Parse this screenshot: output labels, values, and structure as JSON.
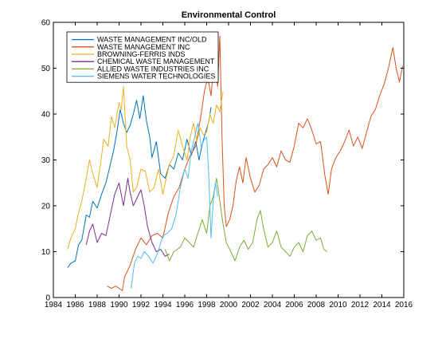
{
  "chart_data": {
    "type": "line",
    "title": "Environmental Control",
    "xlabel": "",
    "ylabel": "",
    "xlim": [
      1984,
      2016
    ],
    "ylim": [
      0,
      60
    ],
    "xticks": [
      "1984",
      "1986",
      "1988",
      "1990",
      "1992",
      "1994",
      "1996",
      "1998",
      "2000",
      "2002",
      "2004",
      "2006",
      "2008",
      "2010",
      "2012",
      "2014",
      "2016"
    ],
    "yticks": [
      "0",
      "10",
      "20",
      "30",
      "40",
      "50",
      "60"
    ],
    "grid": false,
    "legend_position": "top-left",
    "series": [
      {
        "name": "WASTE MANAGEMENT INC/OLD",
        "color": "#0072BD",
        "points": [
          [
            1985.3,
            6.5
          ],
          [
            1985.6,
            7.5
          ],
          [
            1986.0,
            8.0
          ],
          [
            1986.3,
            11.5
          ],
          [
            1986.6,
            12.5
          ],
          [
            1987.0,
            18.0
          ],
          [
            1987.3,
            17.5
          ],
          [
            1987.6,
            21.0
          ],
          [
            1988.0,
            19.5
          ],
          [
            1988.4,
            22.5
          ],
          [
            1988.8,
            25.0
          ],
          [
            1989.2,
            29.0
          ],
          [
            1989.5,
            32.0
          ],
          [
            1989.8,
            36.0
          ],
          [
            1990.1,
            41.0
          ],
          [
            1990.4,
            38.0
          ],
          [
            1990.7,
            36.0
          ],
          [
            1991.0,
            37.5
          ],
          [
            1991.3,
            40.0
          ],
          [
            1991.6,
            43.0
          ],
          [
            1991.9,
            39.0
          ],
          [
            1992.2,
            44.0
          ],
          [
            1992.5,
            38.5
          ],
          [
            1992.8,
            35.0
          ],
          [
            1993.0,
            30.5
          ],
          [
            1993.4,
            34.0
          ],
          [
            1993.8,
            27.0
          ],
          [
            1994.2,
            26.0
          ],
          [
            1994.6,
            29.0
          ],
          [
            1995.0,
            28.0
          ],
          [
            1995.4,
            31.5
          ],
          [
            1995.8,
            30.0
          ],
          [
            1996.2,
            34.5
          ],
          [
            1996.6,
            31.0
          ],
          [
            1997.0,
            34.0
          ],
          [
            1997.3,
            30.0
          ],
          [
            1997.6,
            33.5
          ],
          [
            1997.9,
            36.0
          ],
          [
            1998.2,
            38.5
          ],
          [
            1998.4,
            41.5
          ]
        ]
      },
      {
        "name": "WASTE MANAGEMENT INC",
        "color": "#D95319",
        "points": [
          [
            1988.9,
            2.5
          ],
          [
            1989.3,
            2.0
          ],
          [
            1989.7,
            2.5
          ],
          [
            1990.0,
            2.0
          ],
          [
            1990.3,
            1.5
          ],
          [
            1990.5,
            4.5
          ],
          [
            1991.0,
            7.0
          ],
          [
            1991.5,
            10.5
          ],
          [
            1992.0,
            13.0
          ],
          [
            1992.5,
            11.5
          ],
          [
            1993.0,
            13.5
          ],
          [
            1993.5,
            14.0
          ],
          [
            1994.0,
            13.0
          ],
          [
            1994.5,
            18.5
          ],
          [
            1995.0,
            22.0
          ],
          [
            1995.5,
            24.0
          ],
          [
            1996.0,
            28.0
          ],
          [
            1996.5,
            31.0
          ],
          [
            1997.0,
            33.0
          ],
          [
            1997.5,
            40.0
          ],
          [
            1997.8,
            45.0
          ],
          [
            1998.1,
            48.0
          ],
          [
            1998.4,
            44.0
          ],
          [
            1998.7,
            52.0
          ],
          [
            1999.0,
            46.0
          ],
          [
            1999.2,
            57.0
          ],
          [
            1999.4,
            35.0
          ],
          [
            1999.6,
            20.0
          ],
          [
            1999.8,
            15.5
          ],
          [
            2000.1,
            17.0
          ],
          [
            2000.4,
            20.0
          ],
          [
            2000.7,
            25.5
          ],
          [
            2001.0,
            28.5
          ],
          [
            2001.3,
            25.0
          ],
          [
            2001.6,
            30.5
          ],
          [
            2002.0,
            26.0
          ],
          [
            2002.4,
            23.0
          ],
          [
            2002.8,
            24.5
          ],
          [
            2003.2,
            28.0
          ],
          [
            2003.6,
            29.0
          ],
          [
            2004.0,
            30.5
          ],
          [
            2004.4,
            28.5
          ],
          [
            2004.8,
            32.0
          ],
          [
            2005.2,
            30.0
          ],
          [
            2005.6,
            29.5
          ],
          [
            2006.0,
            33.0
          ],
          [
            2006.4,
            38.0
          ],
          [
            2006.8,
            37.0
          ],
          [
            2007.2,
            39.0
          ],
          [
            2007.6,
            36.5
          ],
          [
            2008.0,
            33.5
          ],
          [
            2008.4,
            34.0
          ],
          [
            2008.8,
            26.5
          ],
          [
            2009.1,
            22.5
          ],
          [
            2009.4,
            28.0
          ],
          [
            2009.8,
            30.5
          ],
          [
            2010.2,
            32.0
          ],
          [
            2010.6,
            34.0
          ],
          [
            2011.0,
            36.5
          ],
          [
            2011.4,
            33.0
          ],
          [
            2011.8,
            35.0
          ],
          [
            2012.2,
            32.5
          ],
          [
            2012.6,
            36.0
          ],
          [
            2013.0,
            39.5
          ],
          [
            2013.4,
            41.0
          ],
          [
            2013.8,
            44.0
          ],
          [
            2014.2,
            46.5
          ],
          [
            2014.6,
            50.0
          ],
          [
            2015.0,
            54.5
          ],
          [
            2015.3,
            50.0
          ],
          [
            2015.6,
            47.0
          ],
          [
            2015.9,
            50.5
          ]
        ]
      },
      {
        "name": "BROWNING-FERRIS INDS",
        "color": "#EDB120",
        "points": [
          [
            1985.3,
            10.5
          ],
          [
            1985.6,
            13.0
          ],
          [
            1986.0,
            15.0
          ],
          [
            1986.3,
            18.5
          ],
          [
            1986.6,
            21.0
          ],
          [
            1987.0,
            26.0
          ],
          [
            1987.3,
            30.0
          ],
          [
            1987.6,
            27.0
          ],
          [
            1988.0,
            24.0
          ],
          [
            1988.3,
            29.0
          ],
          [
            1988.6,
            34.5
          ],
          [
            1989.0,
            33.0
          ],
          [
            1989.3,
            39.5
          ],
          [
            1989.6,
            37.0
          ],
          [
            1990.0,
            42.5
          ],
          [
            1990.2,
            41.0
          ],
          [
            1990.4,
            46.0
          ],
          [
            1990.7,
            33.0
          ],
          [
            1991.0,
            30.0
          ],
          [
            1991.3,
            23.0
          ],
          [
            1991.6,
            24.0
          ],
          [
            1992.0,
            28.0
          ],
          [
            1992.4,
            27.5
          ],
          [
            1992.8,
            23.0
          ],
          [
            1993.2,
            24.0
          ],
          [
            1993.6,
            28.0
          ],
          [
            1994.0,
            22.5
          ],
          [
            1994.3,
            26.0
          ],
          [
            1994.6,
            29.0
          ],
          [
            1995.0,
            31.0
          ],
          [
            1995.4,
            36.5
          ],
          [
            1995.8,
            33.0
          ],
          [
            1996.2,
            30.0
          ],
          [
            1996.5,
            35.0
          ],
          [
            1996.8,
            38.0
          ],
          [
            1997.1,
            34.0
          ],
          [
            1997.4,
            37.0
          ],
          [
            1997.7,
            35.5
          ],
          [
            1998.0,
            36.0
          ],
          [
            1998.3,
            40.0
          ],
          [
            1998.6,
            38.0
          ],
          [
            1998.9,
            42.0
          ],
          [
            1999.2,
            40.5
          ],
          [
            1999.5,
            45.0
          ]
        ]
      },
      {
        "name": "CHEMICAL WASTE MANAGEMENT",
        "color": "#7E2F8E",
        "points": [
          [
            1987.0,
            11.5
          ],
          [
            1987.3,
            14.5
          ],
          [
            1987.6,
            16.0
          ],
          [
            1988.0,
            12.0
          ],
          [
            1988.4,
            14.0
          ],
          [
            1988.8,
            13.5
          ],
          [
            1989.2,
            18.0
          ],
          [
            1989.6,
            22.5
          ],
          [
            1990.0,
            25.0
          ],
          [
            1990.4,
            20.0
          ],
          [
            1990.8,
            26.0
          ],
          [
            1991.0,
            23.0
          ],
          [
            1991.3,
            20.0
          ],
          [
            1991.6,
            21.5
          ],
          [
            1992.0,
            23.5
          ],
          [
            1992.3,
            20.0
          ],
          [
            1992.6,
            15.5
          ],
          [
            1993.0,
            12.0
          ],
          [
            1993.4,
            10.0
          ],
          [
            1993.8,
            10.5
          ],
          [
            1994.2,
            9.0
          ],
          [
            1994.6,
            9.5
          ]
        ]
      },
      {
        "name": "ALLIED WASTE INDUSTRIES INC",
        "color": "#77AC30",
        "points": [
          [
            1994.2,
            10.5
          ],
          [
            1994.6,
            8.0
          ],
          [
            1995.0,
            10.0
          ],
          [
            1995.3,
            10.5
          ],
          [
            1995.6,
            11.0
          ],
          [
            1996.0,
            13.0
          ],
          [
            1996.4,
            12.0
          ],
          [
            1996.8,
            11.0
          ],
          [
            1997.2,
            14.0
          ],
          [
            1997.6,
            17.0
          ],
          [
            1998.0,
            14.0
          ],
          [
            1998.3,
            20.0
          ],
          [
            1998.6,
            22.0
          ],
          [
            1998.9,
            26.0
          ],
          [
            1999.2,
            21.0
          ],
          [
            1999.5,
            16.0
          ],
          [
            1999.8,
            12.0
          ],
          [
            2000.2,
            10.0
          ],
          [
            2000.6,
            8.0
          ],
          [
            2001.0,
            11.0
          ],
          [
            2001.4,
            12.5
          ],
          [
            2001.8,
            10.5
          ],
          [
            2002.2,
            12.0
          ],
          [
            2002.6,
            17.0
          ],
          [
            2002.9,
            19.0
          ],
          [
            2003.2,
            15.0
          ],
          [
            2003.6,
            11.0
          ],
          [
            2004.0,
            12.0
          ],
          [
            2004.4,
            14.5
          ],
          [
            2004.8,
            11.0
          ],
          [
            2005.2,
            10.0
          ],
          [
            2005.6,
            9.0
          ],
          [
            2006.0,
            11.0
          ],
          [
            2006.4,
            12.0
          ],
          [
            2006.8,
            10.0
          ],
          [
            2007.2,
            13.5
          ],
          [
            2007.6,
            14.5
          ],
          [
            2008.0,
            12.5
          ],
          [
            2008.4,
            13.0
          ],
          [
            2008.7,
            10.5
          ],
          [
            2009.0,
            10.0
          ]
        ]
      },
      {
        "name": "SIEMENS WATER TECHNOLOGIES",
        "color": "#4DBEEE",
        "points": [
          [
            1991.1,
            2.0
          ],
          [
            1991.4,
            7.5
          ],
          [
            1991.7,
            9.0
          ],
          [
            1992.0,
            8.5
          ],
          [
            1992.3,
            10.0
          ],
          [
            1992.7,
            9.0
          ],
          [
            1993.1,
            7.5
          ],
          [
            1993.5,
            9.5
          ],
          [
            1994.0,
            13.5
          ],
          [
            1994.4,
            14.0
          ],
          [
            1994.8,
            15.0
          ],
          [
            1995.2,
            18.0
          ],
          [
            1995.6,
            24.0
          ],
          [
            1996.0,
            28.0
          ],
          [
            1996.3,
            26.0
          ],
          [
            1996.6,
            32.0
          ],
          [
            1996.9,
            35.0
          ],
          [
            1997.2,
            38.0
          ],
          [
            1997.5,
            33.0
          ],
          [
            1997.8,
            34.5
          ],
          [
            1998.0,
            35.0
          ],
          [
            1998.2,
            26.0
          ],
          [
            1998.4,
            13.0
          ],
          [
            1998.6,
            21.0
          ],
          [
            1998.8,
            25.0
          ],
          [
            1999.0,
            22.0
          ]
        ]
      }
    ]
  }
}
